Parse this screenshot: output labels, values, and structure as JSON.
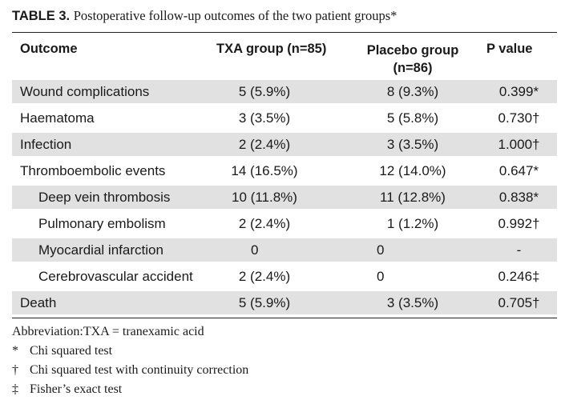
{
  "title": {
    "label": "TABLE 3.",
    "text": "Postoperative follow-up outcomes of the two patient groups*"
  },
  "columns": {
    "outcome": "Outcome",
    "txa": "TXA group (n=85)",
    "placebo_line1": "Placebo group",
    "placebo_line2": "(n=86)",
    "p": "P value"
  },
  "rows": [
    {
      "outcome": "Wound complications",
      "txa": "5 (5.9%)",
      "placebo": "8 (9.3%)",
      "p": "0.399*"
    },
    {
      "outcome": "Haematoma",
      "txa": "3 (3.5%)",
      "placebo": "5 (5.8%)",
      "p": "0.730†"
    },
    {
      "outcome": "Infection",
      "txa": "2 (2.4%)",
      "placebo": "3 (3.5%)",
      "p": "1.000†"
    },
    {
      "outcome": "Thromboembolic events",
      "txa": "14 (16.5%)",
      "placebo": "12 (14.0%)",
      "p": "0.647*"
    },
    {
      "outcome": "Deep vein thrombosis",
      "txa": "10 (11.8%)",
      "placebo": "11 (12.8%)",
      "p": "0.838*"
    },
    {
      "outcome": "Pulmonary embolism",
      "txa": "2 (2.4%)",
      "placebo": "1 (1.2%)",
      "p": "0.992†"
    },
    {
      "outcome": "Myocardial infarction",
      "txa": "0",
      "placebo": "0",
      "p": "-"
    },
    {
      "outcome": "Cerebrovascular accident",
      "txa": "2 (2.4%)",
      "placebo": "0",
      "p": "0.246‡"
    },
    {
      "outcome": "Death",
      "txa": "5 (5.9%)",
      "placebo": "3 (3.5%)",
      "p": "0.705†"
    }
  ],
  "footnotes": {
    "abbreviation": "Abbreviation:TXA = tranexamic acid",
    "notes": [
      {
        "symbol": "*",
        "text": "Chi squared test"
      },
      {
        "symbol": "†",
        "text": "Chi squared test with continuity correction"
      },
      {
        "symbol": "‡",
        "text": "Fisher’s exact test"
      }
    ]
  }
}
